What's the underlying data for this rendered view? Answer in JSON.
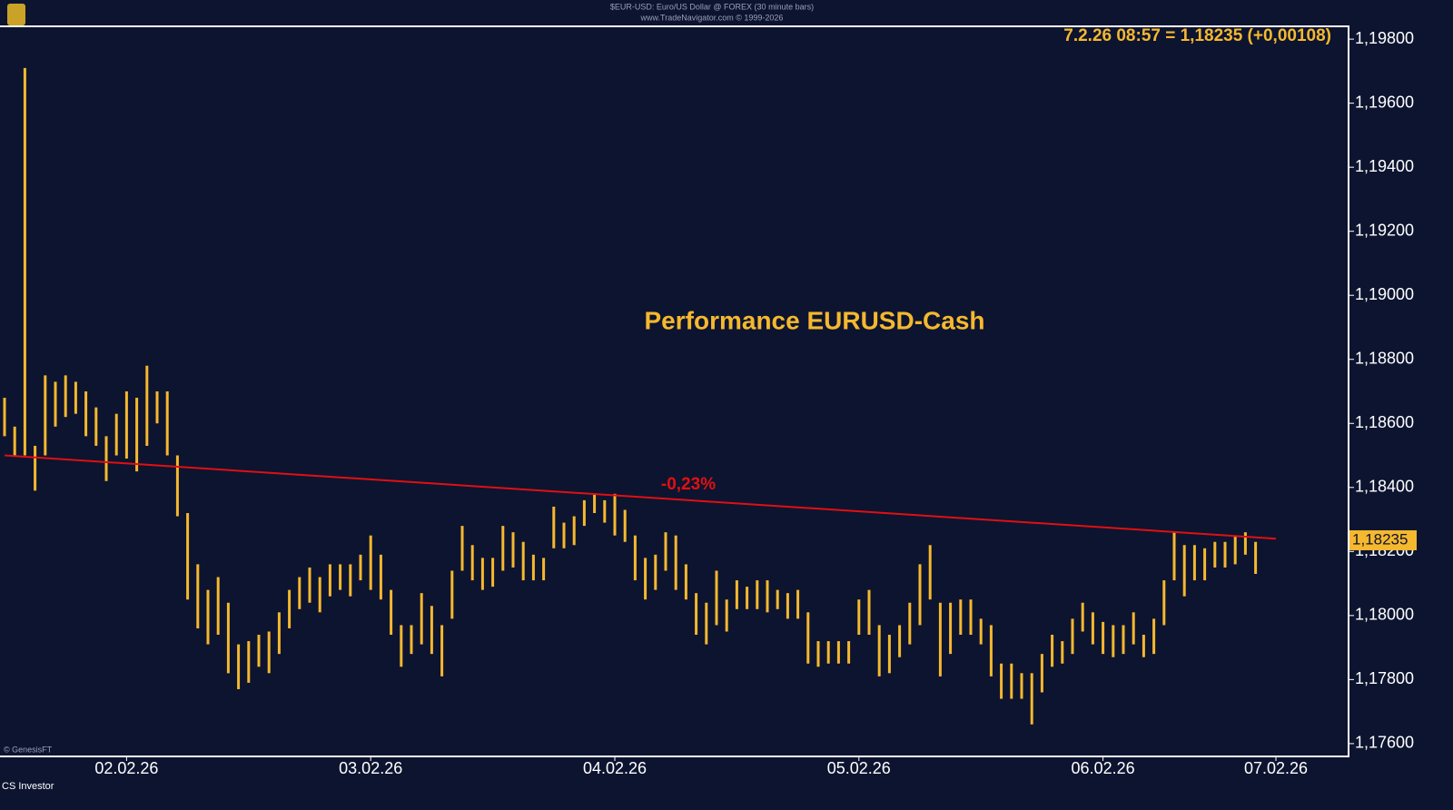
{
  "chart_data": {
    "type": "ohlc",
    "header": "$EUR-USD: Euro/US Dollar @ FOREX  (30 minute bars)",
    "subheader": "www.TradeNavigator.com © 1999-2026",
    "last_label": "7.2.26 08:57 = 1,18235 (+0,00108)",
    "title": "Performance EURUSD-Cash",
    "watermark": "© GenesisFT",
    "footer": "CS Investor",
    "color": "#f5b82e",
    "categories": [
      null,
      null,
      null,
      null,
      null,
      null,
      null,
      null,
      null,
      null,
      null,
      null,
      "02.02.26",
      null,
      null,
      null,
      null,
      null,
      null,
      null,
      null,
      null,
      null,
      null,
      null,
      null,
      null,
      null,
      null,
      null,
      null,
      null,
      null,
      null,
      null,
      null,
      "03.02.26",
      null,
      null,
      null,
      null,
      null,
      null,
      null,
      null,
      null,
      null,
      null,
      null,
      null,
      null,
      null,
      null,
      null,
      null,
      null,
      null,
      null,
      null,
      null,
      "04.02.26",
      null,
      null,
      null,
      null,
      null,
      null,
      null,
      null,
      null,
      null,
      null,
      null,
      null,
      null,
      null,
      null,
      null,
      null,
      null,
      null,
      null,
      null,
      null,
      "05.02.26",
      null,
      null,
      null,
      null,
      null,
      null,
      null,
      null,
      null,
      null,
      null,
      null,
      null,
      null,
      null,
      null,
      null,
      null,
      null,
      null,
      null,
      null,
      null,
      "06.02.26",
      null,
      null,
      null,
      null,
      null,
      null,
      null,
      null,
      null,
      null,
      null,
      null,
      null,
      null,
      null,
      null,
      "07.02.26"
    ],
    "high": [
      1.1868,
      1.1859,
      1.1971,
      1.1853,
      1.1875,
      1.1873,
      1.1875,
      1.1873,
      1.187,
      1.1865,
      1.1856,
      1.1863,
      1.187,
      1.1868,
      1.1878,
      1.187,
      1.187,
      1.185,
      1.1832,
      1.1816,
      1.1808,
      1.1812,
      1.1804,
      1.1791,
      1.1792,
      1.1794,
      1.1795,
      1.1801,
      1.1808,
      1.1812,
      1.1815,
      1.1812,
      1.1816,
      1.1816,
      1.1816,
      1.1819,
      1.1825,
      1.1819,
      1.1808,
      1.1797,
      1.1797,
      1.1807,
      1.1803,
      1.1797,
      1.1814,
      1.1828,
      1.1822,
      1.1818,
      1.1818,
      1.1828,
      1.1826,
      1.1823,
      1.1819,
      1.1818,
      1.1834,
      1.1829,
      1.1831,
      1.1836,
      1.1838,
      1.1836,
      1.1838,
      1.1833,
      1.1825,
      1.1818,
      1.1819,
      1.1826,
      1.1825,
      1.1816,
      1.1807,
      1.1804,
      1.1814,
      1.1805,
      1.1811,
      1.1809,
      1.1811,
      1.1811,
      1.1808,
      1.1807,
      1.1808,
      1.1801,
      1.1792,
      1.1792,
      1.1792,
      1.1792,
      1.1805,
      1.1808,
      1.1797,
      1.1794,
      1.1797,
      1.1804,
      1.1816,
      1.1822,
      1.1804,
      1.1804,
      1.1805,
      1.1805,
      1.1799,
      1.1797,
      1.1785,
      1.1785,
      1.1782,
      1.1782,
      1.1788,
      1.1794,
      1.1792,
      1.1799,
      1.1804,
      1.1801,
      1.1798,
      1.1797,
      1.1797,
      1.1801,
      1.1794,
      1.1799,
      1.1811,
      1.1826,
      1.1822,
      1.1822,
      1.1821,
      1.1823,
      1.1823,
      1.1825,
      1.1826,
      1.1823,
      1.18235,
      1.18235
    ],
    "low": [
      1.1856,
      1.185,
      1.185,
      1.1839,
      1.185,
      1.1859,
      1.1862,
      1.1863,
      1.1856,
      1.1853,
      1.1842,
      1.185,
      1.1849,
      1.1845,
      1.1853,
      1.186,
      1.185,
      1.1831,
      1.1805,
      1.1796,
      1.1791,
      1.1794,
      1.1782,
      1.1777,
      1.1779,
      1.1784,
      1.1782,
      1.1788,
      1.1796,
      1.1802,
      1.1804,
      1.1801,
      1.1806,
      1.1808,
      1.1806,
      1.1811,
      1.1808,
      1.1805,
      1.1794,
      1.1784,
      1.1788,
      1.1791,
      1.1788,
      1.1781,
      1.1799,
      1.1814,
      1.1811,
      1.1808,
      1.1809,
      1.1814,
      1.1815,
      1.1811,
      1.1811,
      1.1811,
      1.1821,
      1.1821,
      1.1822,
      1.1828,
      1.1832,
      1.1829,
      1.1825,
      1.1823,
      1.1811,
      1.1805,
      1.1808,
      1.1814,
      1.1808,
      1.1805,
      1.1794,
      1.1791,
      1.1797,
      1.1795,
      1.1802,
      1.1802,
      1.1802,
      1.1801,
      1.1802,
      1.1799,
      1.1799,
      1.1785,
      1.1784,
      1.1785,
      1.1785,
      1.1785,
      1.1794,
      1.1794,
      1.1781,
      1.1782,
      1.1787,
      1.1791,
      1.1797,
      1.1805,
      1.1781,
      1.1788,
      1.1794,
      1.1794,
      1.1791,
      1.1781,
      1.1774,
      1.1774,
      1.1774,
      1.1766,
      1.1776,
      1.1784,
      1.1785,
      1.1788,
      1.1795,
      1.1791,
      1.1788,
      1.1787,
      1.1788,
      1.1791,
      1.1787,
      1.1788,
      1.1797,
      1.1811,
      1.1806,
      1.1811,
      1.1811,
      1.1815,
      1.1815,
      1.1816,
      1.1819,
      1.1813,
      1.18235,
      1.18235
    ],
    "trendline": {
      "color": "#e01010",
      "values": [
        1.185,
        1.1824
      ],
      "label": "-0,23%"
    },
    "last_value": {
      "value": 1.18235,
      "label": "1,18235"
    },
    "ylim": [
      1.1756,
      1.1984
    ],
    "yticks": [
      {
        "value": 1.176,
        "label": "1,17600"
      },
      {
        "value": 1.178,
        "label": "1,17800"
      },
      {
        "value": 1.18,
        "label": "1,18000"
      },
      {
        "value": 1.182,
        "label": "1,18200"
      },
      {
        "value": 1.184,
        "label": "1,18400"
      },
      {
        "value": 1.186,
        "label": "1,18600"
      },
      {
        "value": 1.188,
        "label": "1,18800"
      },
      {
        "value": 1.19,
        "label": "1,19000"
      },
      {
        "value": 1.192,
        "label": "1,19200"
      },
      {
        "value": 1.194,
        "label": "1,19400"
      },
      {
        "value": 1.196,
        "label": "1,19600"
      },
      {
        "value": 1.198,
        "label": "1,19800"
      }
    ]
  }
}
